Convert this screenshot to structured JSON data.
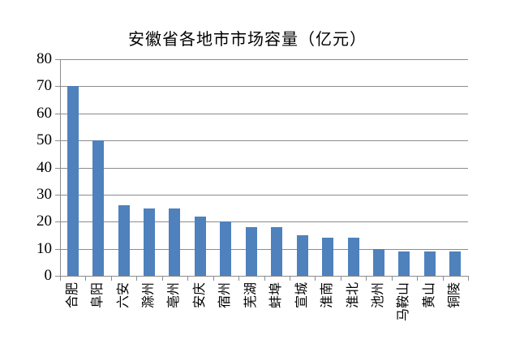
{
  "chart_data": {
    "type": "bar",
    "title": "安徽省各地市市场容量（亿元）",
    "categories": [
      "合肥",
      "阜阳",
      "六安",
      "滁州",
      "亳州",
      "安庆",
      "宿州",
      "芜湖",
      "蚌埠",
      "宣城",
      "淮南",
      "淮北",
      "池州",
      "马鞍山",
      "黄山",
      "铜陵"
    ],
    "values": [
      70,
      50,
      26,
      25,
      25,
      22,
      20,
      18,
      18,
      15,
      14,
      14,
      10,
      9,
      9,
      9
    ],
    "xlabel": "",
    "ylabel": "",
    "ylim": [
      0,
      80
    ],
    "yticks": [
      0,
      10,
      20,
      30,
      40,
      50,
      60,
      70,
      80
    ],
    "grid": "horizontal-only",
    "legend": "none",
    "x_label_rotation": -90,
    "colors": {
      "bar": "#4F81BD",
      "gridline": "#8C8C8C",
      "axis": "#8C8C8C",
      "text": "#000000",
      "background": "#FFFFFF"
    }
  }
}
